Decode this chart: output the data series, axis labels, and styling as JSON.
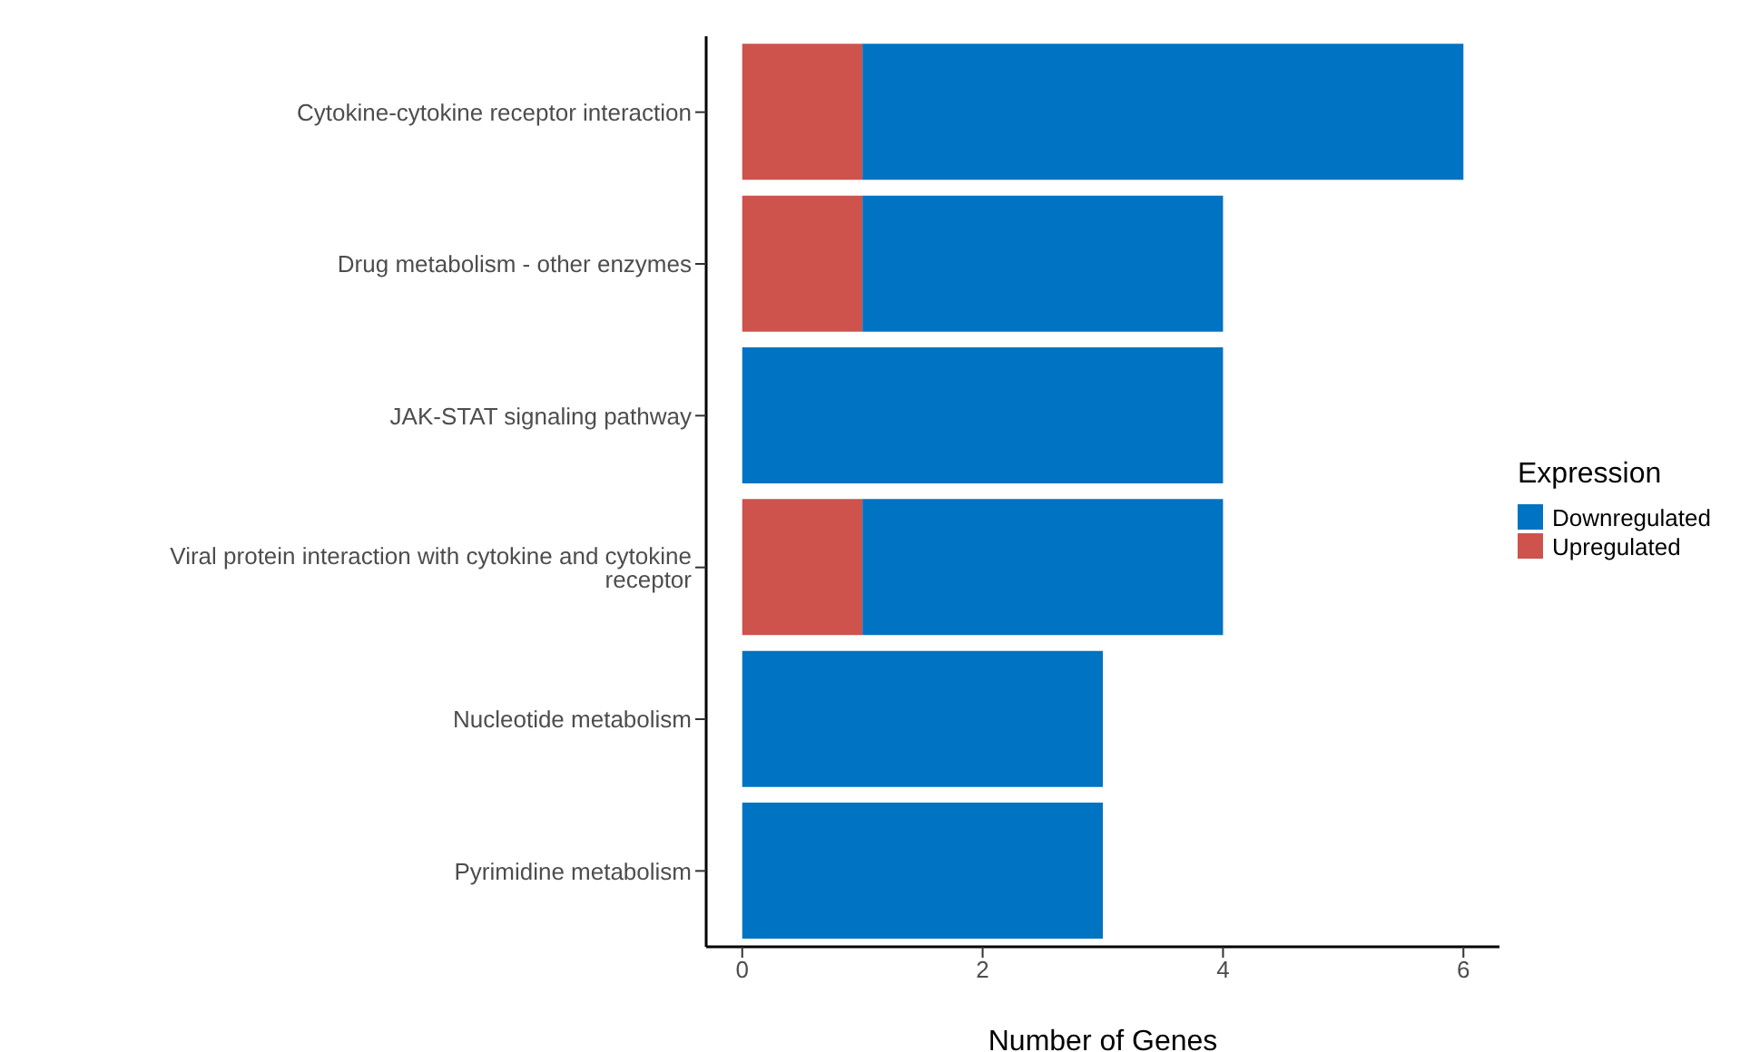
{
  "chart_data": {
    "type": "bar",
    "orientation": "horizontal",
    "stacked": true,
    "xlabel": "Number of Genes",
    "legend_title": "Expression",
    "legend": "right",
    "grid": false,
    "categories": [
      "Cytokine-cytokine receptor interaction",
      "Drug metabolism - other enzymes",
      "JAK-STAT signaling pathway",
      "Viral protein interaction with cytokine and cytokine receptor",
      "Nucleotide metabolism",
      "Pyrimidine metabolism"
    ],
    "series": [
      {
        "name": "Upregulated",
        "color": "#cd534c",
        "values": [
          1,
          1,
          0,
          1,
          0,
          0
        ]
      },
      {
        "name": "Downregulated",
        "color": "#0073c2",
        "values": [
          5,
          3,
          4,
          3,
          3,
          3
        ]
      }
    ],
    "xlim": [
      -0.3,
      6.3
    ],
    "xticks": [
      0,
      2,
      4,
      6
    ]
  }
}
